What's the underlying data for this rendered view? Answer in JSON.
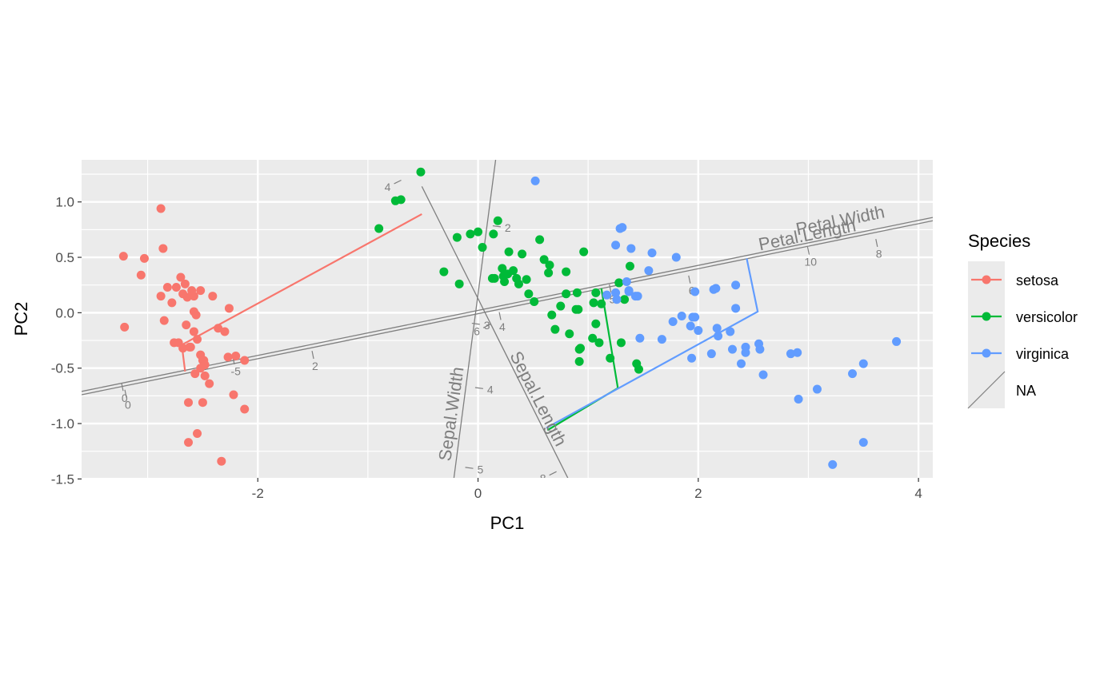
{
  "chart_data": {
    "type": "scatter",
    "subtype": "calibrated PCA biplot",
    "title": "",
    "xlabel": "PC1",
    "ylabel": "PC2",
    "xlim": [
      -3.6,
      4.13
    ],
    "ylim": [
      -1.49,
      1.38
    ],
    "x_ticks": [
      -2,
      0,
      2,
      4
    ],
    "y_ticks": [
      1.0,
      0.5,
      0.0,
      -0.5,
      -1.0,
      -1.5
    ],
    "y_tick_labels": [
      "1.0",
      "0.5",
      "0.0",
      "-0.5",
      "-1.0",
      "-1.5"
    ],
    "x_tick_labels": [
      "-2",
      "0",
      "2",
      "4"
    ],
    "grid": true,
    "panel_background": "#ebebeb",
    "legend": {
      "title": "Species",
      "position": "right",
      "entries": [
        {
          "label": "setosa",
          "color": "#f8766d",
          "kind": "point-line"
        },
        {
          "label": "versicolor",
          "color": "#00ba38",
          "kind": "point-line"
        },
        {
          "label": "virginica",
          "color": "#619cff",
          "kind": "point-line"
        },
        {
          "label": "NA",
          "color": "#7f7f7f",
          "kind": "diagonal-line"
        }
      ]
    },
    "axis_color": "#7f7f7f",
    "variable_axes": [
      {
        "name": "Sepal.Length",
        "from": [
          -0.51,
          1.14
        ],
        "to": [
          0.82,
          -1.5
        ],
        "label_at": [
          0.5,
          -0.8
        ],
        "label_angle": 63,
        "ticks": [
          {
            "label": "4",
            "at": [
              -0.73,
              1.18
            ]
          },
          {
            "label": "6",
            "at": [
              0.08,
              -0.12
            ]
          },
          {
            "label": "8",
            "at": [
              0.68,
              -1.45
            ]
          }
        ]
      },
      {
        "name": "Sepal.Width",
        "from": [
          -0.22,
          -1.5
        ],
        "to": [
          0.16,
          1.38
        ],
        "label_at": [
          -0.19,
          -0.92
        ],
        "label_angle": -82,
        "ticks": [
          {
            "label": "2",
            "at": [
              0.17,
              0.78
            ]
          },
          {
            "label": "3",
            "at": [
              -0.02,
              -0.1
            ]
          },
          {
            "label": "4",
            "at": [
              0.01,
              -0.68
            ]
          },
          {
            "label": "5",
            "at": [
              -0.08,
              -1.4
            ]
          }
        ]
      },
      {
        "name": "Petal.Length",
        "from": [
          -3.6,
          -0.74
        ],
        "to": [
          4.13,
          0.83
        ],
        "label_at": [
          3.0,
          0.65
        ],
        "label_angle": -11.5,
        "ticks": [
          {
            "label": "0",
            "at": [
              -3.2,
              -0.73
            ]
          },
          {
            "label": "2",
            "at": [
              -1.5,
              -0.38
            ]
          },
          {
            "label": "4",
            "at": [
              0.2,
              -0.03
            ]
          },
          {
            "label": "6",
            "at": [
              1.92,
              0.3
            ]
          },
          {
            "label": "8",
            "at": [
              3.62,
              0.63
            ]
          }
        ]
      },
      {
        "name": "Petal.Width",
        "from": [
          -3.6,
          -0.71
        ],
        "to": [
          4.13,
          0.86
        ],
        "label_at": [
          3.3,
          0.78
        ],
        "label_angle": -11.5,
        "ticks": [
          {
            "label": "0",
            "at": [
              -3.23,
              -0.67
            ]
          },
          {
            "label": "-5",
            "at": [
              -2.22,
              -0.43
            ]
          },
          {
            "label": "5",
            "at": [
              1.2,
              0.22
            ]
          },
          {
            "label": "10",
            "at": [
              3.0,
              0.56
            ]
          }
        ]
      }
    ],
    "projection_lines": [
      {
        "species": "setosa",
        "points": [
          [
            -2.66,
            -0.53
          ],
          [
            -2.69,
            -0.29
          ],
          [
            -0.51,
            0.89
          ]
        ]
      },
      {
        "species": "versicolor",
        "points": [
          [
            0.63,
            -1.06
          ],
          [
            1.27,
            -0.68
          ],
          [
            1.12,
            0.22
          ]
        ]
      },
      {
        "species": "virginica",
        "points": [
          [
            0.62,
            -1.04
          ],
          [
            2.54,
            0.01
          ],
          [
            2.44,
            0.49
          ]
        ]
      }
    ],
    "series": [
      {
        "name": "setosa",
        "color": "#f8766d",
        "points": [
          [
            -3.22,
            0.51
          ],
          [
            -3.21,
            -0.13
          ],
          [
            -3.03,
            0.49
          ],
          [
            -3.06,
            0.34
          ],
          [
            -2.88,
            0.94
          ],
          [
            -2.86,
            0.58
          ],
          [
            -2.88,
            0.15
          ],
          [
            -2.85,
            -0.07
          ],
          [
            -2.82,
            0.23
          ],
          [
            -2.78,
            0.09
          ],
          [
            -2.76,
            -0.27
          ],
          [
            -2.74,
            0.23
          ],
          [
            -2.72,
            -0.27
          ],
          [
            -2.7,
            0.32
          ],
          [
            -2.68,
            -0.32
          ],
          [
            -2.68,
            0.17
          ],
          [
            -2.66,
            0.26
          ],
          [
            -2.65,
            -0.11
          ],
          [
            -2.64,
            0.14
          ],
          [
            -2.62,
            -0.31
          ],
          [
            -2.61,
            -0.31
          ],
          [
            -2.63,
            -0.81
          ],
          [
            -2.6,
            0.2
          ],
          [
            -2.58,
            0.15
          ],
          [
            -2.58,
            -0.17
          ],
          [
            -2.57,
            -0.55
          ],
          [
            -2.58,
            0.01
          ],
          [
            -2.56,
            -0.02
          ],
          [
            -2.55,
            -0.24
          ],
          [
            -2.52,
            0.2
          ],
          [
            -2.52,
            -0.38
          ],
          [
            -2.52,
            -0.5
          ],
          [
            -2.5,
            -0.43
          ],
          [
            -2.49,
            -0.43
          ],
          [
            -2.48,
            -0.57
          ],
          [
            -2.48,
            -0.47
          ],
          [
            -2.5,
            -0.81
          ],
          [
            -2.55,
            -1.09
          ],
          [
            -2.44,
            -0.64
          ],
          [
            -2.41,
            0.15
          ],
          [
            -2.36,
            -0.14
          ],
          [
            -2.3,
            -0.17
          ],
          [
            -2.27,
            -0.4
          ],
          [
            -2.26,
            0.04
          ],
          [
            -2.2,
            -0.39
          ],
          [
            -2.22,
            -0.74
          ],
          [
            -2.12,
            -0.43
          ],
          [
            -2.12,
            -0.87
          ],
          [
            -2.63,
            -1.17
          ],
          [
            -2.33,
            -1.34
          ]
        ]
      },
      {
        "name": "versicolor",
        "color": "#00ba38",
        "points": [
          [
            -0.9,
            0.76
          ],
          [
            -0.75,
            1.01
          ],
          [
            -0.7,
            1.02
          ],
          [
            -0.52,
            1.27
          ],
          [
            -0.31,
            0.37
          ],
          [
            -0.19,
            0.68
          ],
          [
            -0.17,
            0.26
          ],
          [
            -0.07,
            0.71
          ],
          [
            0.0,
            0.73
          ],
          [
            0.04,
            0.59
          ],
          [
            0.14,
            0.71
          ],
          [
            0.18,
            0.83
          ],
          [
            0.22,
            0.4
          ],
          [
            0.23,
            0.33
          ],
          [
            0.24,
            0.28
          ],
          [
            0.27,
            0.35
          ],
          [
            0.28,
            0.55
          ],
          [
            0.32,
            0.38
          ],
          [
            0.35,
            0.31
          ],
          [
            0.37,
            0.26
          ],
          [
            0.4,
            0.53
          ],
          [
            0.44,
            0.3
          ],
          [
            0.46,
            0.17
          ],
          [
            0.51,
            0.1
          ],
          [
            0.56,
            0.66
          ],
          [
            0.6,
            0.48
          ],
          [
            0.64,
            0.36
          ],
          [
            0.65,
            0.43
          ],
          [
            0.67,
            -0.02
          ],
          [
            0.7,
            -0.15
          ],
          [
            0.75,
            0.06
          ],
          [
            0.8,
            0.17
          ],
          [
            0.8,
            0.37
          ],
          [
            0.83,
            -0.19
          ],
          [
            0.89,
            0.03
          ],
          [
            0.9,
            0.18
          ],
          [
            0.91,
            0.03
          ],
          [
            0.92,
            -0.33
          ],
          [
            0.92,
            -0.44
          ],
          [
            0.93,
            -0.32
          ],
          [
            0.96,
            0.55
          ],
          [
            1.04,
            -0.23
          ],
          [
            1.05,
            0.09
          ],
          [
            1.07,
            -0.1
          ],
          [
            1.1,
            -0.27
          ],
          [
            1.12,
            0.08
          ],
          [
            1.2,
            -0.41
          ],
          [
            1.28,
            0.27
          ],
          [
            1.33,
            0.12
          ],
          [
            1.46,
            -0.51
          ],
          [
            1.38,
            0.42
          ],
          [
            1.07,
            0.18
          ],
          [
            0.15,
            0.31
          ],
          [
            0.13,
            0.31
          ],
          [
            1.3,
            -0.27
          ],
          [
            1.44,
            -0.46
          ]
        ]
      },
      {
        "name": "virginica",
        "color": "#619cff",
        "points": [
          [
            0.52,
            1.19
          ],
          [
            1.17,
            0.16
          ],
          [
            1.25,
            0.18
          ],
          [
            1.26,
            0.12
          ],
          [
            1.29,
            0.76
          ],
          [
            1.31,
            0.77
          ],
          [
            1.35,
            0.28
          ],
          [
            1.37,
            0.2
          ],
          [
            1.37,
            0.19
          ],
          [
            1.39,
            0.58
          ],
          [
            1.43,
            0.15
          ],
          [
            1.45,
            0.15
          ],
          [
            1.55,
            0.38
          ],
          [
            1.58,
            0.54
          ],
          [
            1.67,
            -0.24
          ],
          [
            1.77,
            -0.08
          ],
          [
            1.8,
            0.5
          ],
          [
            1.85,
            -0.03
          ],
          [
            1.93,
            -0.12
          ],
          [
            1.95,
            -0.04
          ],
          [
            1.97,
            -0.04
          ],
          [
            1.97,
            0.19
          ],
          [
            1.94,
            -0.41
          ],
          [
            2.0,
            -0.16
          ],
          [
            2.12,
            -0.37
          ],
          [
            2.14,
            0.21
          ],
          [
            2.16,
            0.22
          ],
          [
            2.17,
            -0.14
          ],
          [
            2.18,
            -0.21
          ],
          [
            2.29,
            -0.17
          ],
          [
            2.31,
            -0.33
          ],
          [
            2.34,
            0.04
          ],
          [
            2.34,
            0.25
          ],
          [
            2.39,
            -0.46
          ],
          [
            2.43,
            -0.31
          ],
          [
            2.43,
            -0.36
          ],
          [
            2.55,
            -0.28
          ],
          [
            2.56,
            -0.33
          ],
          [
            2.59,
            -0.56
          ],
          [
            2.84,
            -0.37
          ],
          [
            2.9,
            -0.36
          ],
          [
            2.91,
            -0.78
          ],
          [
            3.08,
            -0.69
          ],
          [
            3.22,
            -1.37
          ],
          [
            3.4,
            -0.55
          ],
          [
            3.5,
            -1.17
          ],
          [
            3.5,
            -0.46
          ],
          [
            3.8,
            -0.26
          ],
          [
            1.25,
            0.61
          ],
          [
            1.47,
            -0.23
          ]
        ]
      }
    ]
  }
}
